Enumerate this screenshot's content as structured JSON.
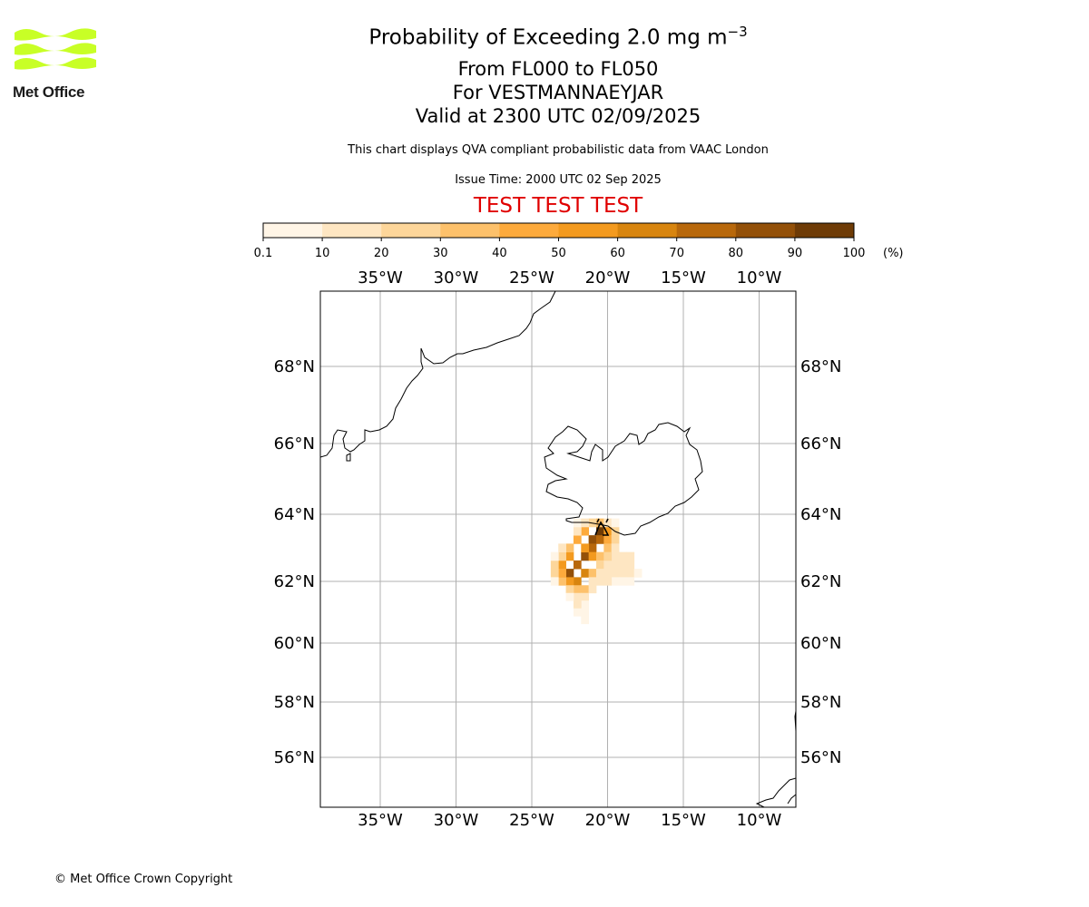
{
  "logo": {
    "text": "Met Office",
    "accent_color": "#c8ff26"
  },
  "title": {
    "main": "Probability of Exceeding 2.0 mg m",
    "main_superscript": "−3",
    "levels": "From FL000 to FL050",
    "location": "For VESTMANNAEYJAR",
    "valid": "Valid at 2300 UTC 02/09/2025",
    "description": "This chart displays QVA compliant probabilistic data from VAAC London",
    "issue_time": "Issue Time: 2000 UTC 02 Sep 2025",
    "test_banner": "TEST TEST TEST",
    "test_banner_color": "#e00000"
  },
  "colorbar": {
    "ticks": [
      "0.1",
      "10",
      "20",
      "30",
      "40",
      "50",
      "60",
      "70",
      "80",
      "90",
      "100"
    ],
    "unit": "(%)",
    "colors": [
      "#fff5e6",
      "#fee6c2",
      "#fdd69a",
      "#fdc16b",
      "#fdaa3c",
      "#f39a1f",
      "#d8850f",
      "#b8680b",
      "#935008",
      "#6e3b06"
    ]
  },
  "map": {
    "lon_labels": [
      "35°W",
      "30°W",
      "25°W",
      "20°W",
      "15°W",
      "10°W"
    ],
    "lon_values": [
      -35,
      -30,
      -25,
      -20,
      -15,
      -10
    ],
    "lat_labels": [
      "68°N",
      "66°N",
      "64°N",
      "62°N",
      "60°N",
      "58°N",
      "56°N"
    ],
    "lat_values": [
      68,
      66,
      64,
      62,
      60,
      58,
      56
    ],
    "gridlines": true,
    "plume_cells": [
      {
        "lon": -20.5,
        "lat": 63.5,
        "prob": 92
      },
      {
        "lon": -21.0,
        "lat": 63.25,
        "prob": 88
      },
      {
        "lon": -21.0,
        "lat": 63.0,
        "prob": 75
      },
      {
        "lon": -21.5,
        "lat": 62.75,
        "prob": 80
      },
      {
        "lon": -22.0,
        "lat": 62.5,
        "prob": 72
      },
      {
        "lon": -22.5,
        "lat": 62.25,
        "prob": 85
      },
      {
        "lon": -22.0,
        "lat": 62.0,
        "prob": 68
      },
      {
        "lon": -21.5,
        "lat": 62.25,
        "prob": 62
      },
      {
        "lon": -20.5,
        "lat": 63.25,
        "prob": 70
      },
      {
        "lon": -20.0,
        "lat": 63.5,
        "prob": 55
      },
      {
        "lon": -21.5,
        "lat": 63.0,
        "prob": 58
      },
      {
        "lon": -22.5,
        "lat": 62.75,
        "prob": 55
      },
      {
        "lon": -23.0,
        "lat": 62.5,
        "prob": 52
      },
      {
        "lon": -22.5,
        "lat": 62.0,
        "prob": 55
      },
      {
        "lon": -21.0,
        "lat": 62.75,
        "prob": 50
      },
      {
        "lon": -20.0,
        "lat": 63.25,
        "prob": 45
      },
      {
        "lon": -21.5,
        "lat": 63.5,
        "prob": 42
      },
      {
        "lon": -22.0,
        "lat": 63.25,
        "prob": 40
      },
      {
        "lon": -23.0,
        "lat": 62.0,
        "prob": 38
      },
      {
        "lon": -23.0,
        "lat": 62.25,
        "prob": 45
      },
      {
        "lon": -21.0,
        "lat": 62.25,
        "prob": 35
      },
      {
        "lon": -20.5,
        "lat": 62.75,
        "prob": 38
      },
      {
        "lon": -21.5,
        "lat": 61.75,
        "prob": 30
      },
      {
        "lon": -22.0,
        "lat": 61.75,
        "prob": 34
      },
      {
        "lon": -20.0,
        "lat": 63.0,
        "prob": 32
      },
      {
        "lon": -19.5,
        "lat": 63.5,
        "prob": 25
      },
      {
        "lon": -19.5,
        "lat": 63.25,
        "prob": 22
      },
      {
        "lon": -23.5,
        "lat": 62.5,
        "prob": 25
      },
      {
        "lon": -23.5,
        "lat": 62.25,
        "prob": 20
      },
      {
        "lon": -23.0,
        "lat": 62.75,
        "prob": 28
      },
      {
        "lon": -22.5,
        "lat": 63.0,
        "prob": 30
      },
      {
        "lon": -22.5,
        "lat": 61.75,
        "prob": 22
      },
      {
        "lon": -22.0,
        "lat": 63.5,
        "prob": 18
      },
      {
        "lon": -21.0,
        "lat": 63.75,
        "prob": 20
      },
      {
        "lon": -20.5,
        "lat": 63.75,
        "prob": 30
      },
      {
        "lon": -20.0,
        "lat": 63.75,
        "prob": 18
      },
      {
        "lon": -20.5,
        "lat": 62.5,
        "prob": 22
      },
      {
        "lon": -20.5,
        "lat": 62.25,
        "prob": 15
      },
      {
        "lon": -21.0,
        "lat": 62.0,
        "prob": 18
      },
      {
        "lon": -21.0,
        "lat": 61.75,
        "prob": 14
      },
      {
        "lon": -21.5,
        "lat": 61.5,
        "prob": 12
      },
      {
        "lon": -22.0,
        "lat": 61.5,
        "prob": 15
      },
      {
        "lon": -22.5,
        "lat": 61.5,
        "prob": 8
      },
      {
        "lon": -21.5,
        "lat": 61.25,
        "prob": 8
      },
      {
        "lon": -22.0,
        "lat": 61.25,
        "prob": 10
      },
      {
        "lon": -22.0,
        "lat": 61.0,
        "prob": 6
      },
      {
        "lon": -21.5,
        "lat": 61.0,
        "prob": 4
      },
      {
        "lon": -21.5,
        "lat": 60.75,
        "prob": 3
      },
      {
        "lon": -19.5,
        "lat": 63.0,
        "prob": 15
      },
      {
        "lon": -19.5,
        "lat": 62.75,
        "prob": 12
      },
      {
        "lon": -19.0,
        "lat": 62.75,
        "prob": 14
      },
      {
        "lon": -18.5,
        "lat": 62.75,
        "prob": 12
      },
      {
        "lon": -19.0,
        "lat": 62.5,
        "prob": 15
      },
      {
        "lon": -18.5,
        "lat": 62.5,
        "prob": 13
      },
      {
        "lon": -19.5,
        "lat": 62.5,
        "prob": 16
      },
      {
        "lon": -20.0,
        "lat": 62.5,
        "prob": 18
      },
      {
        "lon": -20.0,
        "lat": 62.25,
        "prob": 14
      },
      {
        "lon": -19.5,
        "lat": 62.25,
        "prob": 13
      },
      {
        "lon": -19.0,
        "lat": 62.25,
        "prob": 12
      },
      {
        "lon": -18.5,
        "lat": 62.25,
        "prob": 11
      },
      {
        "lon": -18.0,
        "lat": 62.25,
        "prob": 5
      },
      {
        "lon": -19.5,
        "lat": 62.0,
        "prob": 8
      },
      {
        "lon": -19.0,
        "lat": 62.0,
        "prob": 8
      },
      {
        "lon": -18.5,
        "lat": 62.0,
        "prob": 7
      },
      {
        "lon": -20.0,
        "lat": 62.0,
        "prob": 10
      },
      {
        "lon": -20.5,
        "lat": 62.0,
        "prob": 12
      },
      {
        "lon": -20.0,
        "lat": 62.75,
        "prob": 20
      },
      {
        "lon": -22.0,
        "lat": 63.75,
        "prob": 6
      },
      {
        "lon": -21.5,
        "lat": 63.75,
        "prob": 10
      },
      {
        "lon": -19.5,
        "lat": 63.75,
        "prob": 6
      },
      {
        "lon": -23.0,
        "lat": 63.0,
        "prob": 10
      },
      {
        "lon": -23.5,
        "lat": 62.75,
        "prob": 8
      },
      {
        "lon": -23.5,
        "lat": 62.0,
        "prob": 8
      }
    ]
  },
  "footer": {
    "copyright": "© Met Office Crown Copyright"
  }
}
